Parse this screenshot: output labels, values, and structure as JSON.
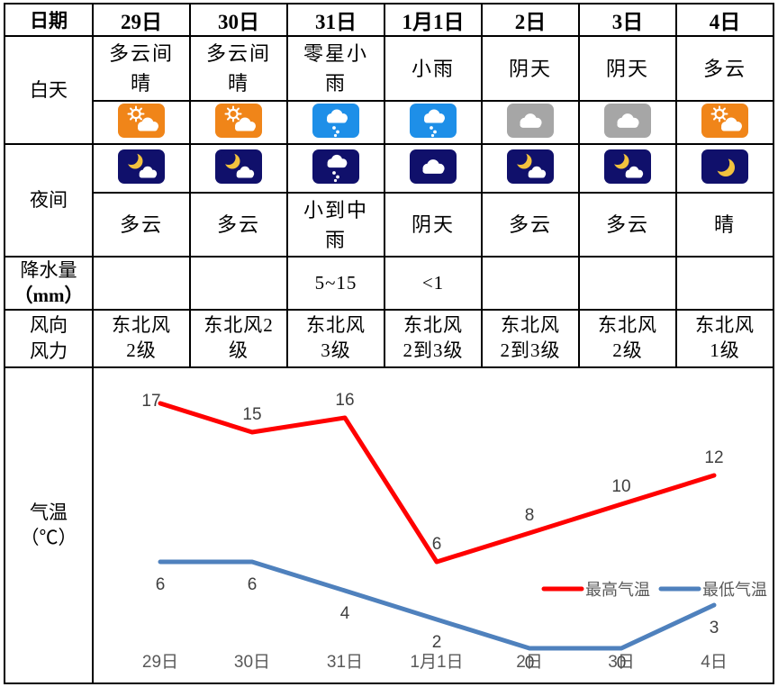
{
  "table": {
    "date_header_label": "日期",
    "dates": [
      "29日",
      "30日",
      "31日",
      "1月1日",
      "2日",
      "3日",
      "4日"
    ],
    "day_row_label": "白天",
    "day_conditions": [
      "多云间\n晴",
      "多云间\n晴",
      "零星小\n雨",
      "小雨",
      "阴天",
      "阴天",
      "多云"
    ],
    "day_icons": [
      "partly-cloudy-day",
      "partly-cloudy-day",
      "rain-day",
      "rain-day",
      "overcast",
      "overcast",
      "partly-cloudy-day"
    ],
    "night_row_label": "夜间",
    "night_icons": [
      "night-cloudy",
      "night-cloudy",
      "night-rain",
      "night-overcast",
      "night-cloudy",
      "night-cloudy",
      "night-clear"
    ],
    "night_conditions": [
      "多云",
      "多云",
      "小到中\n雨",
      "阴天",
      "多云",
      "多云",
      "晴"
    ],
    "precip_label_line1": "降水量",
    "precip_label_line2": "（mm）",
    "precipitation": [
      "",
      "",
      "5~15",
      "<1",
      "",
      "",
      ""
    ],
    "wind_label": "风向\n风力",
    "wind": [
      "东北风\n2级",
      "东北风2\n级",
      "东北风\n3级",
      "东北风\n2到3级",
      "东北风\n2到3级",
      "东北风\n2级",
      "东北风\n1级"
    ],
    "temp_label": "气温\n（℃）"
  },
  "chart_data": {
    "type": "line",
    "categories": [
      "29日",
      "30日",
      "31日",
      "1月1日",
      "2日",
      "3日",
      "4日"
    ],
    "series": [
      {
        "name": "最高气温",
        "color": "#FF0000",
        "values": [
          17,
          15,
          16,
          6,
          8,
          10,
          12
        ]
      },
      {
        "name": "最低气温",
        "color": "#4F81BD",
        "values": [
          6,
          6,
          4,
          2,
          0,
          0,
          3
        ]
      }
    ],
    "title": "",
    "xlabel": "",
    "ylabel": "气温（℃）",
    "ylim": [
      -2,
      19
    ],
    "grid": false,
    "legend_position": "center-right",
    "label_color": "#404040",
    "axis_label_color": "#595959",
    "icon_colors": {
      "day_sun_bg": "#F08519",
      "day_rain_bg": "#1E8FE8",
      "overcast_bg": "#A6A6A6",
      "night_bg": "#10106B",
      "moon": "#F2C23E"
    }
  }
}
